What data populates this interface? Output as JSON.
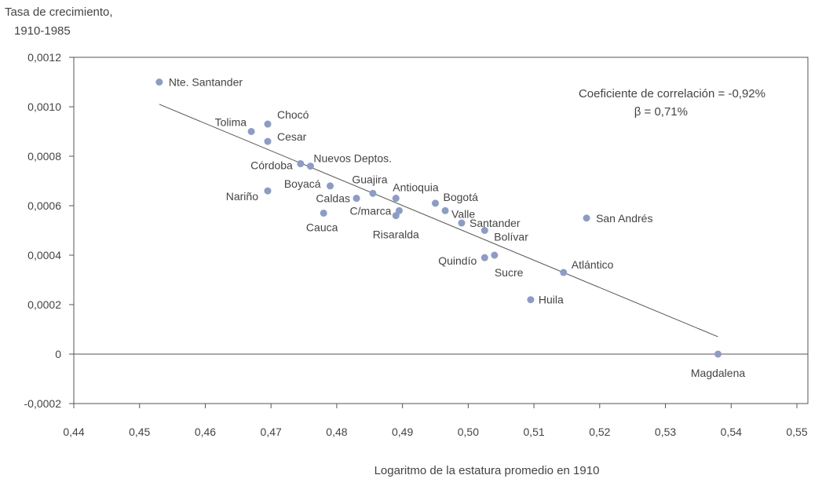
{
  "chart_data": {
    "type": "scatter",
    "ylabel_line1": "Tasa de crecimiento,",
    "ylabel_line2": "1910-1985",
    "xlabel": "Logaritmo de la estatura promedio en 1910",
    "xlim": [
      0.44,
      0.55
    ],
    "ylim": [
      -0.0002,
      0.0012
    ],
    "x_ticks": [
      0.44,
      0.45,
      0.46,
      0.47,
      0.48,
      0.49,
      0.5,
      0.51,
      0.52,
      0.53,
      0.54,
      0.55
    ],
    "x_tick_labels": [
      "0,44",
      "0,45",
      "0,46",
      "0,47",
      "0,48",
      "0,49",
      "0,50",
      "0,51",
      "0,52",
      "0,53",
      "0,54",
      "0,55"
    ],
    "y_ticks": [
      0.0012,
      0.001,
      0.0008,
      0.0006,
      0.0004,
      0.0002,
      0,
      -0.0002
    ],
    "y_tick_labels": [
      "0,0012",
      "0,0010",
      "0,0008",
      "0,0006",
      "0,0004",
      "0,0002",
      "0",
      "-0,0002"
    ],
    "annotation_line1": "Coeficiente de correlación = -0,92%",
    "annotation_line2": "β =  0,71%",
    "point_color": "#8c9cc8",
    "trend": {
      "x1": 0.453,
      "y1": 0.00101,
      "x2": 0.538,
      "y2": 7e-05
    },
    "points": [
      {
        "label": "Nte. Santander",
        "x": 0.453,
        "y": 0.0011,
        "anchor": "start",
        "dx": 12,
        "dy": 0
      },
      {
        "label": "Chocó",
        "x": 0.4695,
        "y": 0.00093,
        "anchor": "start",
        "dx": 12,
        "dy": -12
      },
      {
        "label": "Tolima",
        "x": 0.467,
        "y": 0.0009,
        "anchor": "end",
        "dx": -6,
        "dy": -12
      },
      {
        "label": "Cesar",
        "x": 0.4695,
        "y": 0.00086,
        "anchor": "start",
        "dx": 12,
        "dy": -6
      },
      {
        "label": "Córdoba",
        "x": 0.4745,
        "y": 0.00077,
        "anchor": "end",
        "dx": -10,
        "dy": 2
      },
      {
        "label": "Nuevos Deptos.",
        "x": 0.476,
        "y": 0.00076,
        "anchor": "start",
        "dx": 4,
        "dy": -10
      },
      {
        "label": "Boyacá",
        "x": 0.479,
        "y": 0.00068,
        "anchor": "end",
        "dx": -12,
        "dy": -3
      },
      {
        "label": "Nariño",
        "x": 0.4695,
        "y": 0.00066,
        "anchor": "end",
        "dx": -12,
        "dy": 7
      },
      {
        "label": "Guajira",
        "x": 0.4855,
        "y": 0.00065,
        "anchor": "middle",
        "dx": -4,
        "dy": -18
      },
      {
        "label": "Caldas",
        "x": 0.483,
        "y": 0.00063,
        "anchor": "end",
        "dx": -8,
        "dy": 0
      },
      {
        "label": "Antioquia",
        "x": 0.489,
        "y": 0.00063,
        "anchor": "start",
        "dx": -4,
        "dy": -14
      },
      {
        "label": "Bogotá",
        "x": 0.495,
        "y": 0.00061,
        "anchor": "start",
        "dx": 10,
        "dy": -8
      },
      {
        "label": "C/marca",
        "x": 0.4895,
        "y": 0.00058,
        "anchor": "end",
        "dx": -10,
        "dy": 0
      },
      {
        "label": "Valle",
        "x": 0.4965,
        "y": 0.00058,
        "anchor": "start",
        "dx": 8,
        "dy": 4
      },
      {
        "label": "Cauca",
        "x": 0.478,
        "y": 0.00057,
        "anchor": "middle",
        "dx": -2,
        "dy": 18
      },
      {
        "label": "Risaralda",
        "x": 0.489,
        "y": 0.00056,
        "anchor": "middle",
        "dx": 0,
        "dy": 24
      },
      {
        "label": "San Andrés",
        "x": 0.518,
        "y": 0.00055,
        "anchor": "start",
        "dx": 12,
        "dy": 0
      },
      {
        "label": "Santander",
        "x": 0.499,
        "y": 0.00053,
        "anchor": "start",
        "dx": 10,
        "dy": 0
      },
      {
        "label": "Bolívar",
        "x": 0.5025,
        "y": 0.0005,
        "anchor": "start",
        "dx": 12,
        "dy": 8
      },
      {
        "label": "Quindío",
        "x": 0.5025,
        "y": 0.00039,
        "anchor": "end",
        "dx": -10,
        "dy": 4
      },
      {
        "label": "Sucre",
        "x": 0.504,
        "y": 0.0004,
        "anchor": "start",
        "dx": 0,
        "dy": 22
      },
      {
        "label": "Atlántico",
        "x": 0.5145,
        "y": 0.00033,
        "anchor": "start",
        "dx": 10,
        "dy": -10
      },
      {
        "label": "Huila",
        "x": 0.5095,
        "y": 0.00022,
        "anchor": "start",
        "dx": 10,
        "dy": 0
      },
      {
        "label": "Magdalena",
        "x": 0.538,
        "y": 0.0,
        "anchor": "middle",
        "dx": 0,
        "dy": 24
      }
    ]
  }
}
